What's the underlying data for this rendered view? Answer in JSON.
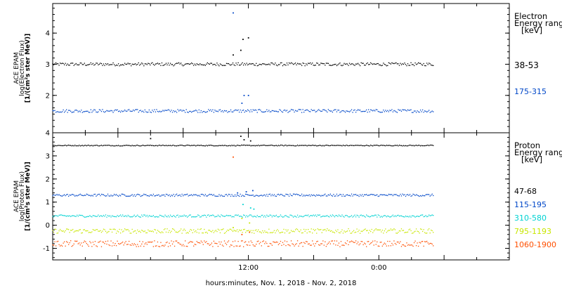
{
  "chart_data": [
    {
      "type": "scatter",
      "ylabel_lines": [
        "ACE EPAM",
        "log(Electron Flux)",
        "[1/(cm²s ster MeV)]"
      ],
      "legend_title_lines": [
        "Electron",
        "Energy range",
        "[keV]"
      ],
      "ylim": [
        0.8,
        4.95
      ],
      "yticks": [
        2,
        3,
        4
      ],
      "xlim_hours": [
        -6,
        36
      ],
      "grid": false,
      "series": [
        {
          "name": "38-53",
          "color": "#000000",
          "base": 3.0,
          "jitter": 0.05,
          "spikes": [
            [
              10.6,
              3.3
            ],
            [
              11.3,
              3.45
            ],
            [
              11.5,
              3.8
            ],
            [
              12.0,
              3.85
            ]
          ]
        },
        {
          "name": "175-315",
          "color": "#0047c8",
          "base": 1.5,
          "jitter": 0.05,
          "spikes": [
            [
              10.6,
              4.65
            ],
            [
              11.4,
              1.75
            ],
            [
              11.6,
              2.0
            ],
            [
              12.0,
              2.0
            ]
          ]
        }
      ]
    },
    {
      "type": "scatter",
      "ylabel_lines": [
        "ACE EPAM",
        "log(Proton Flux)",
        "[1/(cm²s ster MeV)]"
      ],
      "legend_title_lines": [
        "Proton",
        "Energy range",
        "[keV]"
      ],
      "ylim": [
        -1.5,
        4.0
      ],
      "yticks": [
        -1,
        0,
        1,
        2,
        3,
        4
      ],
      "xlim_hours": [
        -6,
        36
      ],
      "grid": false,
      "series": [
        {
          "name": "47-68",
          "color": "#000000",
          "base": 3.45,
          "jitter": 0.02,
          "spikes": [
            [
              3.0,
              3.75
            ],
            [
              11.3,
              3.85
            ],
            [
              11.6,
              3.7
            ],
            [
              12.2,
              3.65
            ]
          ]
        },
        {
          "name": "115-195",
          "color": "#0047c8",
          "base": 1.3,
          "jitter": 0.05,
          "spikes": [
            [
              11.0,
              1.4
            ],
            [
              11.8,
              1.45
            ],
            [
              12.4,
              1.5
            ]
          ]
        },
        {
          "name": "310-580",
          "color": "#00d2d2",
          "base": 0.4,
          "jitter": 0.05,
          "spikes": [
            [
              11.5,
              0.9
            ],
            [
              12.2,
              0.75
            ],
            [
              12.5,
              0.7
            ]
          ]
        },
        {
          "name": "795-1193",
          "color": "#c8e600",
          "base": -0.25,
          "jitter": 0.1,
          "spikes": [
            [
              10.6,
              -0.1
            ],
            [
              11.4,
              0.3
            ],
            [
              12.1,
              0.1
            ]
          ]
        },
        {
          "name": "1060-1900",
          "color": "#ff4f00",
          "base": -0.8,
          "jitter": 0.13,
          "spikes": [
            [
              10.6,
              2.95
            ],
            [
              11.4,
              -0.4
            ],
            [
              12.1,
              -0.3
            ]
          ]
        }
      ]
    }
  ],
  "x_axis": {
    "tick_labels": [
      {
        "hour": 12,
        "label": "12:00"
      },
      {
        "hour": 24,
        "label": "0:00"
      }
    ],
    "xlabel": "hours:minutes, Nov.  1, 2018 - Nov.  2, 2018"
  }
}
